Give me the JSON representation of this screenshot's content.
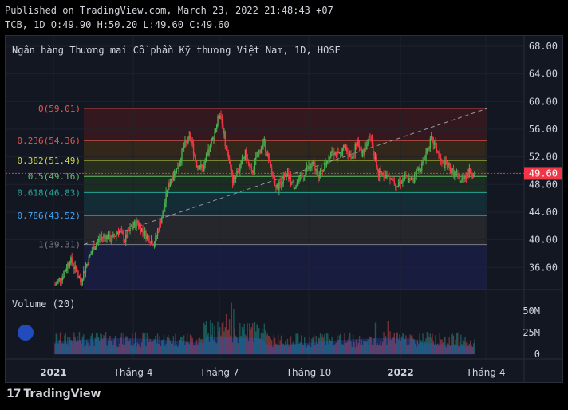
{
  "header": {
    "published": "Published on TradingView.com, March 23, 2022 21:48:43 +07",
    "ohlc": "TCB, 1D O:49.90 H:50.20 L:49.60 C:49.60"
  },
  "brand": {
    "logo_mark": "17",
    "logo_text": "TradingView"
  },
  "colors": {
    "up": "#26a69a",
    "down": "#ef5350",
    "candle_up": "#4caf50",
    "candle_down": "#f23645",
    "price_tag": "#f23645"
  },
  "chart_data": {
    "type": "candlestick",
    "title": "Ngân hàng Thương mai Cổ phần Kỹ thương Việt Nam, 1D, HOSE",
    "y_ticks": [
      "68.00",
      "64.00",
      "60.00",
      "56.00",
      "52.00",
      "48.00",
      "44.00",
      "40.00",
      "36.00"
    ],
    "ylim": [
      32.8,
      69.5
    ],
    "x_ticks": [
      "2021",
      "Tháng 4",
      "Tháng 7",
      "Tháng 10",
      "2022",
      "Tháng 4"
    ],
    "last_price": "49.60",
    "last_value": 49.6,
    "fib_levels": [
      {
        "label": "0(59.01)",
        "value": 59.01,
        "color": "#ef5350"
      },
      {
        "label": "0.236(54.36)",
        "value": 54.36,
        "color": "#ef5350"
      },
      {
        "label": "0.382(51.49)",
        "value": 51.49,
        "color": "#cddc39"
      },
      {
        "label": "0.5(49.16)",
        "value": 49.16,
        "color": "#66bb6a"
      },
      {
        "label": "0.618(46.83)",
        "value": 46.83,
        "color": "#26a69a"
      },
      {
        "label": "0.786(43.52)",
        "value": 43.52,
        "color": "#42a5f5"
      },
      {
        "label": "1(39.31)",
        "value": 39.31,
        "color": "#787b86"
      }
    ],
    "price_path": [
      [
        0,
        33.5
      ],
      [
        8,
        35.0
      ],
      [
        14,
        37.2
      ],
      [
        20,
        35.5
      ],
      [
        24,
        34.0
      ],
      [
        30,
        36.5
      ],
      [
        36,
        38.8
      ],
      [
        42,
        40.2
      ],
      [
        48,
        40.6
      ],
      [
        54,
        40.0
      ],
      [
        60,
        41.5
      ],
      [
        66,
        40.0
      ],
      [
        72,
        41.8
      ],
      [
        78,
        42.5
      ],
      [
        84,
        41.0
      ],
      [
        90,
        40.0
      ],
      [
        94,
        39.4
      ],
      [
        98,
        41.8
      ],
      [
        102,
        43.8
      ],
      [
        106,
        47.2
      ],
      [
        110,
        49.0
      ],
      [
        116,
        50.5
      ],
      [
        122,
        53.5
      ],
      [
        128,
        54.8
      ],
      [
        134,
        51.0
      ],
      [
        140,
        50.2
      ],
      [
        144,
        52.0
      ],
      [
        150,
        55.0
      ],
      [
        156,
        58.5
      ],
      [
        160,
        55.0
      ],
      [
        164,
        51.5
      ],
      [
        168,
        48.8
      ],
      [
        174,
        50.2
      ],
      [
        180,
        52.5
      ],
      [
        186,
        49.5
      ],
      [
        192,
        52.5
      ],
      [
        198,
        54.0
      ],
      [
        204,
        50.2
      ],
      [
        210,
        47.5
      ],
      [
        214,
        48.5
      ],
      [
        220,
        49.2
      ],
      [
        226,
        47.8
      ],
      [
        232,
        48.8
      ],
      [
        238,
        50.2
      ],
      [
        244,
        50.8
      ],
      [
        250,
        49.2
      ],
      [
        256,
        51.0
      ],
      [
        262,
        53.2
      ],
      [
        268,
        52.0
      ],
      [
        274,
        53.5
      ],
      [
        280,
        52.0
      ],
      [
        286,
        54.0
      ],
      [
        292,
        52.5
      ],
      [
        298,
        55.5
      ],
      [
        302,
        52.0
      ],
      [
        306,
        49.5
      ],
      [
        312,
        49.5
      ],
      [
        318,
        48.8
      ],
      [
        324,
        48.0
      ],
      [
        330,
        49.0
      ],
      [
        336,
        48.5
      ],
      [
        342,
        49.8
      ],
      [
        348,
        51.0
      ],
      [
        352,
        53.2
      ],
      [
        356,
        54.5
      ],
      [
        360,
        53.5
      ],
      [
        366,
        51.0
      ],
      [
        372,
        50.6
      ],
      [
        378,
        49.5
      ],
      [
        384,
        48.5
      ],
      [
        388,
        49.4
      ],
      [
        392,
        49.8
      ],
      [
        397,
        49.6
      ]
    ],
    "volume": {
      "label": "Volume (20)",
      "y_ticks": [
        "50M",
        "25M",
        "0"
      ],
      "ylim": [
        0,
        62
      ]
    }
  }
}
